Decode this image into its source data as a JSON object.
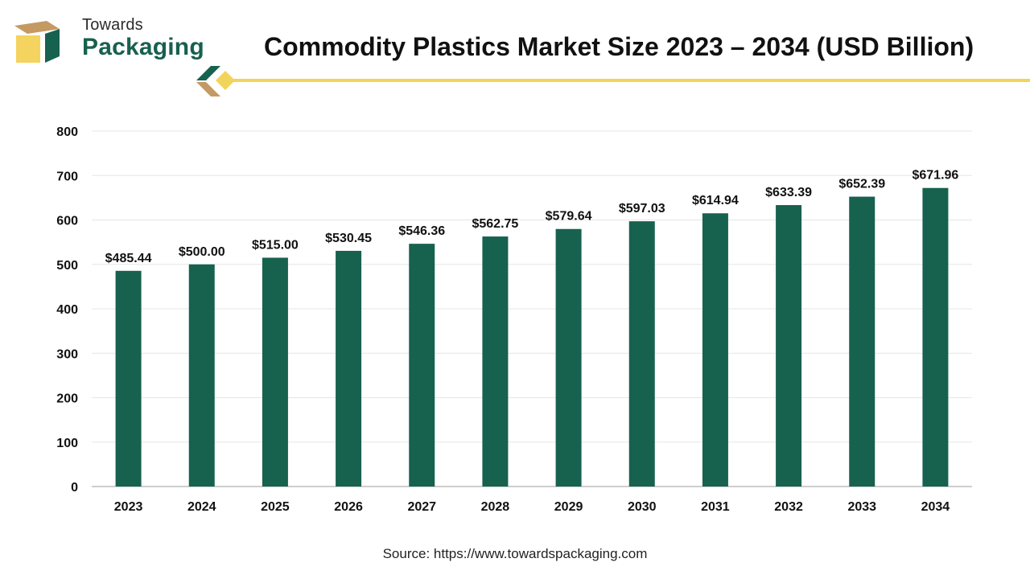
{
  "logo": {
    "line1": "Towards",
    "line2": "Packaging"
  },
  "colors": {
    "bar": "#17614f",
    "accent_yellow": "#f2d35b",
    "accent_tan": "#c49a62",
    "grid": "#e6e6e6",
    "axis": "#bdbdbd"
  },
  "source": "Source: https://www.towardspackaging.com",
  "chart_data": {
    "type": "bar",
    "title": "Commodity Plastics Market Size 2023 – 2034 (USD Billion)",
    "categories": [
      "2023",
      "2024",
      "2025",
      "2026",
      "2027",
      "2028",
      "2029",
      "2030",
      "2031",
      "2032",
      "2033",
      "2034"
    ],
    "values": [
      485.44,
      500.0,
      515.0,
      530.45,
      546.36,
      562.75,
      579.64,
      597.03,
      614.94,
      633.39,
      652.39,
      671.96
    ],
    "data_labels": [
      "$485.44",
      "$500.00",
      "$515.00",
      "$530.45",
      "$546.36",
      "$562.75",
      "$579.64",
      "$597.03",
      "$614.94",
      "$633.39",
      "$652.39",
      "$671.96"
    ],
    "yticks": [
      0,
      100,
      200,
      300,
      400,
      500,
      600,
      700,
      800
    ],
    "ylim": [
      0,
      800
    ],
    "grid": true,
    "legend": "none"
  }
}
